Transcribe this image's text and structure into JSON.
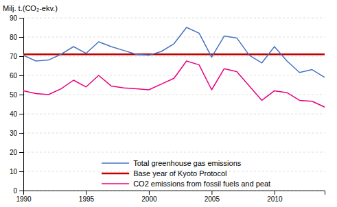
{
  "chart_data": {
    "type": "line",
    "ylabel": "Milj. t.(CO₂-ekv.)",
    "x": [
      1990,
      1991,
      1992,
      1993,
      1994,
      1995,
      1996,
      1997,
      1998,
      1999,
      2000,
      2001,
      2002,
      2003,
      2004,
      2005,
      2006,
      2007,
      2008,
      2009,
      2010,
      2011,
      2012,
      2013,
      2014
    ],
    "series": [
      {
        "name": "Total greenhouse gas emissions",
        "color": "#4472C4",
        "values": [
          70.5,
          67.5,
          68.0,
          71.0,
          75.0,
          71.5,
          77.5,
          75.0,
          73.0,
          71.0,
          70.5,
          72.5,
          76.5,
          85.0,
          82.0,
          69.5,
          80.5,
          79.5,
          70.5,
          66.5,
          75.0,
          67.5,
          61.5,
          63.0,
          59.0
        ]
      },
      {
        "name": "Base year of Kyoto Protocol",
        "color": "#C00000",
        "type": "hline",
        "value": 71.0
      },
      {
        "name": "CO2 emissions from fossil fuels and peat",
        "color": "#E8007F",
        "values": [
          52.0,
          50.5,
          50.0,
          53.0,
          57.5,
          54.0,
          60.0,
          54.5,
          53.5,
          53.0,
          52.5,
          55.5,
          58.5,
          67.5,
          65.5,
          52.5,
          63.5,
          62.0,
          54.5,
          47.0,
          52.0,
          51.0,
          47.0,
          46.5,
          43.5
        ]
      }
    ],
    "xlim": [
      1990,
      2014
    ],
    "xticks": [
      1990,
      1995,
      2000,
      2005,
      2010
    ],
    "ylim": [
      0,
      90
    ],
    "yticks": [
      0,
      10,
      20,
      30,
      40,
      50,
      60,
      70,
      80,
      90
    ],
    "grid": true,
    "legend": "lower center"
  }
}
